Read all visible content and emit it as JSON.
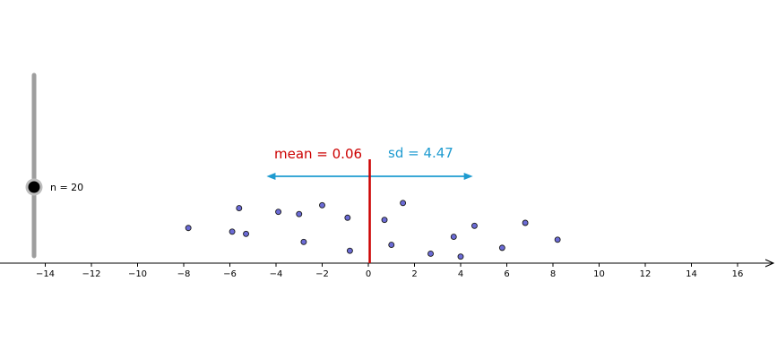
{
  "slider": {
    "label": "n = 20",
    "value": 20,
    "min": 1,
    "max": 100,
    "track_color": "#9e9e9e",
    "knob_color": "#000000"
  },
  "stats": {
    "mean_label": "mean = 0.06",
    "sd_label": "sd = 4.47",
    "mean": 0.06,
    "sd": 4.47,
    "mean_color": "#cc0000",
    "sd_color": "#1e9bd0"
  },
  "chart_data": {
    "type": "scatter",
    "title": "",
    "xlabel": "",
    "ylabel": "",
    "xlim": [
      -16,
      17.7
    ],
    "grid": false,
    "point_color": "#6b6bd6",
    "x_ticks": [
      -14,
      -12,
      -10,
      -8,
      -6,
      -4,
      -2,
      0,
      2,
      4,
      6,
      8,
      10,
      12,
      14,
      16
    ],
    "x_tick_labels": [
      "−14",
      "−12",
      "−10",
      "−8",
      "−6",
      "−4",
      "−2",
      "0",
      "2",
      "4",
      "6",
      "8",
      "10",
      "12",
      "14",
      "16"
    ],
    "points": [
      {
        "x": -7.8,
        "jitter": 0.43
      },
      {
        "x": -5.6,
        "jitter": 0.7
      },
      {
        "x": -5.9,
        "jitter": 0.38
      },
      {
        "x": -5.3,
        "jitter": 0.35
      },
      {
        "x": -3.9,
        "jitter": 0.65
      },
      {
        "x": -3.0,
        "jitter": 0.62
      },
      {
        "x": -2.8,
        "jitter": 0.24
      },
      {
        "x": -2.0,
        "jitter": 0.74
      },
      {
        "x": -0.9,
        "jitter": 0.57
      },
      {
        "x": -0.8,
        "jitter": 0.12
      },
      {
        "x": 0.7,
        "jitter": 0.54
      },
      {
        "x": 1.0,
        "jitter": 0.2
      },
      {
        "x": 1.5,
        "jitter": 0.77
      },
      {
        "x": 2.7,
        "jitter": 0.08
      },
      {
        "x": 3.7,
        "jitter": 0.31
      },
      {
        "x": 4.0,
        "jitter": 0.04
      },
      {
        "x": 4.6,
        "jitter": 0.46
      },
      {
        "x": 5.8,
        "jitter": 0.16
      },
      {
        "x": 6.8,
        "jitter": 0.5
      },
      {
        "x": 8.2,
        "jitter": 0.27
      }
    ]
  }
}
